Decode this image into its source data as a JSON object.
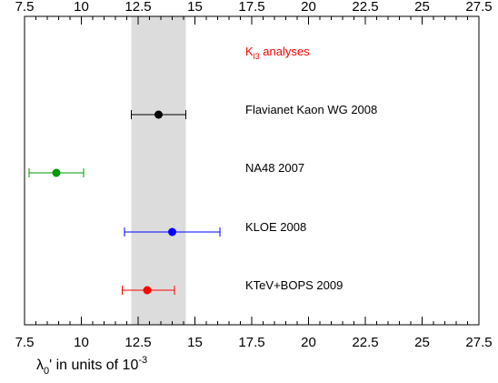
{
  "chart_data": {
    "type": "scatter",
    "xlim": [
      7.5,
      27.5
    ],
    "x_ticks": [
      "7.5",
      "10",
      "12.5",
      "15",
      "17.5",
      "20",
      "22.5",
      "25",
      "27.5"
    ],
    "x_tick_values": [
      7.5,
      10,
      12.5,
      15,
      17.5,
      20,
      22.5,
      25,
      27.5
    ],
    "xlabel": {
      "base": "λ",
      "sub": "0",
      "mid": "' in units of 10",
      "sup": "-3"
    },
    "legend_title": {
      "base": "K",
      "sub": "l3",
      "rest": " analyses",
      "color": "#ff0000"
    },
    "band": {
      "from": 12.2,
      "to": 14.6,
      "color": "#dcdcdc"
    },
    "grid": false,
    "measurements": [
      {
        "label": "Flavianet Kaon WG 2008",
        "value": 13.4,
        "err_low": 12.2,
        "err_high": 14.6,
        "color": "#000000"
      },
      {
        "label": "NA48 2007",
        "value": 8.9,
        "err_low": 7.7,
        "err_high": 10.1,
        "color": "#009900"
      },
      {
        "label": "KLOE 2008",
        "value": 14.0,
        "err_low": 11.9,
        "err_high": 16.1,
        "color": "#0000ff"
      },
      {
        "label": "KTeV+BOPS 2009",
        "value": 12.9,
        "err_low": 11.8,
        "err_high": 14.1,
        "color": "#ff0000"
      }
    ]
  }
}
